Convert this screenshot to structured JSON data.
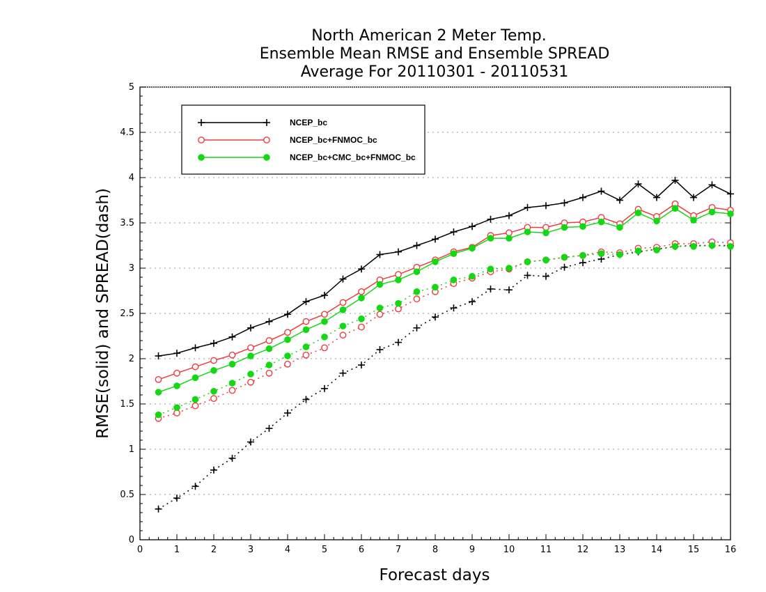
{
  "chart_data": {
    "type": "line",
    "title": [
      "North American 2 Meter Temp.",
      "Ensemble Mean RMSE and Ensemble SPREAD",
      "Average For 20110301 - 20110531"
    ],
    "xlabel": "Forecast days",
    "ylabel": "RMSE(solid) and SPREAD(dash)",
    "xlim": [
      0,
      16
    ],
    "ylim": [
      0,
      5
    ],
    "x_ticks": [
      "0",
      "1",
      "2",
      "3",
      "4",
      "5",
      "6",
      "7",
      "8",
      "9",
      "10",
      "11",
      "12",
      "13",
      "14",
      "15",
      "16"
    ],
    "y_ticks": [
      "0",
      "0.5",
      "1",
      "1.5",
      "2",
      "2.5",
      "3",
      "3.5",
      "4",
      "4.5",
      "5"
    ],
    "grid": "horizontal dotted",
    "legend_position": "top-left",
    "x": [
      0.5,
      1,
      1.5,
      2,
      2.5,
      3,
      3.5,
      4,
      4.5,
      5,
      5.5,
      6,
      6.5,
      7,
      7.5,
      8,
      8.5,
      9,
      9.5,
      10,
      10.5,
      11,
      11.5,
      12,
      12.5,
      13,
      13.5,
      14,
      14.5,
      15,
      15.5,
      16
    ],
    "series": [
      {
        "name": "NCEP_bc",
        "color": "#000000",
        "marker": "plus",
        "rmse": [
          2.03,
          2.06,
          2.12,
          2.17,
          2.24,
          2.34,
          2.41,
          2.49,
          2.63,
          2.7,
          2.88,
          2.99,
          3.15,
          3.18,
          3.25,
          3.32,
          3.4,
          3.46,
          3.54,
          3.58,
          3.67,
          3.69,
          3.72,
          3.78,
          3.85,
          3.75,
          3.93,
          3.78,
          3.97,
          3.78,
          3.92,
          3.82
        ],
        "spread": [
          0.34,
          0.46,
          0.59,
          0.77,
          0.9,
          1.08,
          1.23,
          1.4,
          1.55,
          1.67,
          1.84,
          1.93,
          2.1,
          2.18,
          2.34,
          2.46,
          2.56,
          2.63,
          2.77,
          2.76,
          2.92,
          2.91,
          3.01,
          3.06,
          3.1,
          3.15,
          3.18,
          3.21,
          3.24,
          3.25,
          3.25,
          3.25
        ]
      },
      {
        "name": "NCEP_bc+FNMOC_bc",
        "color": "#ef3b3b",
        "marker": "open-circle",
        "rmse": [
          1.77,
          1.84,
          1.91,
          1.98,
          2.04,
          2.12,
          2.2,
          2.29,
          2.41,
          2.49,
          2.62,
          2.74,
          2.87,
          2.93,
          3.01,
          3.09,
          3.18,
          3.23,
          3.36,
          3.39,
          3.45,
          3.45,
          3.5,
          3.51,
          3.56,
          3.49,
          3.65,
          3.57,
          3.71,
          3.58,
          3.67,
          3.64
        ],
        "spread": [
          1.34,
          1.4,
          1.48,
          1.56,
          1.65,
          1.74,
          1.84,
          1.94,
          2.04,
          2.12,
          2.26,
          2.35,
          2.49,
          2.55,
          2.66,
          2.74,
          2.83,
          2.89,
          2.96,
          2.99,
          3.07,
          3.09,
          3.12,
          3.14,
          3.18,
          3.17,
          3.22,
          3.23,
          3.27,
          3.27,
          3.29,
          3.28
        ]
      },
      {
        "name": "NCEP_bc+CMC_bc+FNMOC_bc",
        "color": "#13d813",
        "marker": "filled-circle",
        "rmse": [
          1.63,
          1.7,
          1.79,
          1.87,
          1.94,
          2.03,
          2.11,
          2.21,
          2.32,
          2.41,
          2.54,
          2.67,
          2.82,
          2.87,
          2.96,
          3.07,
          3.16,
          3.22,
          3.33,
          3.33,
          3.4,
          3.39,
          3.45,
          3.46,
          3.51,
          3.45,
          3.61,
          3.52,
          3.66,
          3.53,
          3.62,
          3.6
        ],
        "spread": [
          1.38,
          1.46,
          1.55,
          1.64,
          1.73,
          1.83,
          1.93,
          2.03,
          2.13,
          2.24,
          2.36,
          2.44,
          2.56,
          2.61,
          2.74,
          2.79,
          2.87,
          2.91,
          2.99,
          3.0,
          3.07,
          3.09,
          3.12,
          3.14,
          3.16,
          3.15,
          3.19,
          3.2,
          3.24,
          3.24,
          3.25,
          3.24
        ]
      }
    ]
  }
}
